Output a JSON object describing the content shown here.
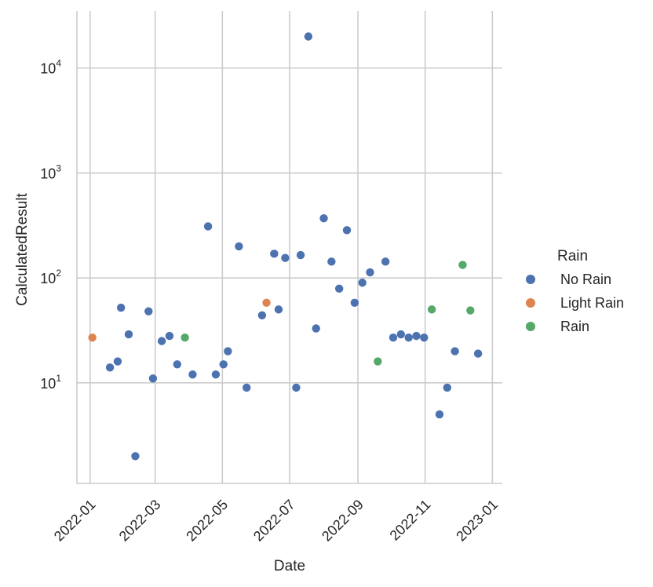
{
  "chart_data": {
    "type": "scatter",
    "title": "",
    "xlabel": "Date",
    "ylabel": "CalculatedResult",
    "xscale": "date",
    "yscale": "log",
    "xlim": [
      "2021-12-20",
      "2023-01-10"
    ],
    "ylim": [
      1.1,
      35000
    ],
    "grid": true,
    "legend": {
      "title": "Rain",
      "placement": "right",
      "entries": [
        "No Rain",
        "Light Rain",
        "Rain"
      ]
    },
    "x_ticks": [
      "2022-01",
      "2022-03",
      "2022-05",
      "2022-07",
      "2022-09",
      "2022-11",
      "2023-01"
    ],
    "y_ticks": [
      {
        "value": 10,
        "base": "10",
        "exp": "1"
      },
      {
        "value": 100,
        "base": "10",
        "exp": "2"
      },
      {
        "value": 1000,
        "base": "10",
        "exp": "3"
      },
      {
        "value": 10000,
        "base": "10",
        "exp": "4"
      }
    ],
    "colors": {
      "No Rain": "#4c72b0",
      "Light Rain": "#dd8452",
      "Rain": "#55a868"
    },
    "series": [
      {
        "name": "No Rain",
        "points": [
          [
            "2022-01-19",
            14
          ],
          [
            "2022-01-26",
            16
          ],
          [
            "2022-01-29",
            52
          ],
          [
            "2022-02-05",
            29
          ],
          [
            "2022-02-11",
            2
          ],
          [
            "2022-02-23",
            48
          ],
          [
            "2022-02-27",
            11
          ],
          [
            "2022-03-07",
            25
          ],
          [
            "2022-03-14",
            28
          ],
          [
            "2022-03-21",
            15
          ],
          [
            "2022-04-04",
            12
          ],
          [
            "2022-04-18",
            310
          ],
          [
            "2022-04-25",
            12
          ],
          [
            "2022-05-02",
            15
          ],
          [
            "2022-05-06",
            20
          ],
          [
            "2022-05-16",
            200
          ],
          [
            "2022-05-23",
            9
          ],
          [
            "2022-06-06",
            44
          ],
          [
            "2022-06-17",
            170
          ],
          [
            "2022-06-21",
            50
          ],
          [
            "2022-06-27",
            155
          ],
          [
            "2022-07-07",
            9
          ],
          [
            "2022-07-11",
            165
          ],
          [
            "2022-07-18",
            20000
          ],
          [
            "2022-07-25",
            33
          ],
          [
            "2022-08-01",
            370
          ],
          [
            "2022-08-08",
            143
          ],
          [
            "2022-08-15",
            79
          ],
          [
            "2022-08-22",
            285
          ],
          [
            "2022-08-29",
            58
          ],
          [
            "2022-09-05",
            90
          ],
          [
            "2022-09-12",
            113
          ],
          [
            "2022-09-26",
            143
          ],
          [
            "2022-10-03",
            27
          ],
          [
            "2022-10-10",
            29
          ],
          [
            "2022-10-17",
            27
          ],
          [
            "2022-10-24",
            28
          ],
          [
            "2022-10-31",
            27
          ],
          [
            "2022-11-14",
            5
          ],
          [
            "2022-11-21",
            9
          ],
          [
            "2022-11-28",
            20
          ],
          [
            "2022-12-19",
            19
          ]
        ]
      },
      {
        "name": "Light Rain",
        "points": [
          [
            "2022-01-03",
            27
          ],
          [
            "2022-06-10",
            58
          ]
        ]
      },
      {
        "name": "Rain",
        "points": [
          [
            "2022-03-28",
            27
          ],
          [
            "2022-09-19",
            16
          ],
          [
            "2022-11-07",
            50
          ],
          [
            "2022-12-05",
            133
          ],
          [
            "2022-12-12",
            49
          ]
        ]
      }
    ]
  }
}
